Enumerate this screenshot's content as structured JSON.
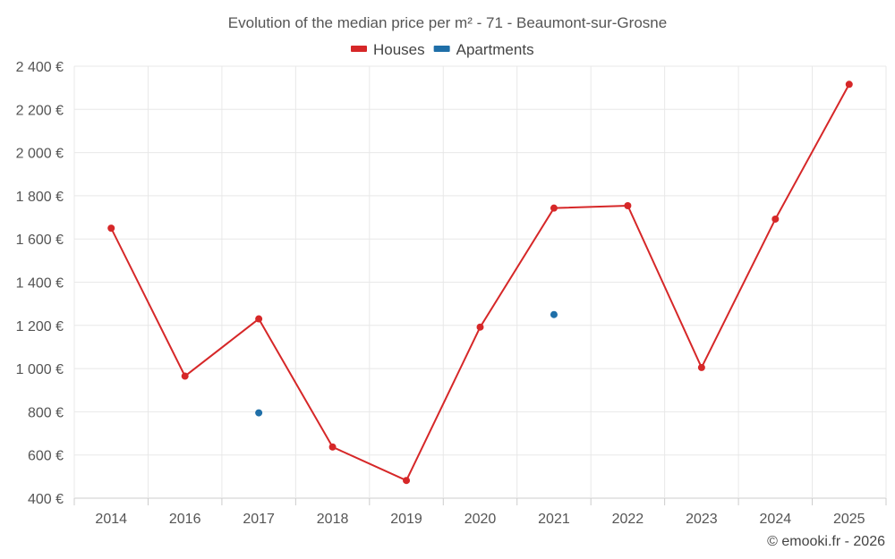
{
  "chart_data": {
    "type": "line",
    "title": "Evolution of the median price per m² - 71 - Beaumont-sur-Grosne",
    "categories": [
      "2014",
      "2016",
      "2017",
      "2018",
      "2019",
      "2020",
      "2021",
      "2022",
      "2023",
      "2024",
      "2025"
    ],
    "y_tick_labels": [
      "400 €",
      "600 €",
      "800 €",
      "1 000 €",
      "1 200 €",
      "1 400 €",
      "1 600 €",
      "1 800 €",
      "2 000 €",
      "2 200 €",
      "2 400 €"
    ],
    "y_ticks": [
      400,
      600,
      800,
      1000,
      1200,
      1400,
      1600,
      1800,
      2000,
      2200,
      2400
    ],
    "ylim": [
      400,
      2400
    ],
    "xlabel": "",
    "ylabel": "",
    "grid": true,
    "legend_position": "top-center",
    "series": [
      {
        "name": "Houses",
        "color": "#d62728",
        "values": [
          1650,
          965,
          1230,
          637,
          482,
          1192,
          1743,
          1754,
          1005,
          1692,
          2316
        ]
      },
      {
        "name": "Apartments",
        "color": "#1f6fa8",
        "values": [
          null,
          null,
          795,
          null,
          null,
          null,
          1250,
          null,
          null,
          null,
          null
        ]
      }
    ]
  },
  "credit": "© emooki.fr - 2026"
}
